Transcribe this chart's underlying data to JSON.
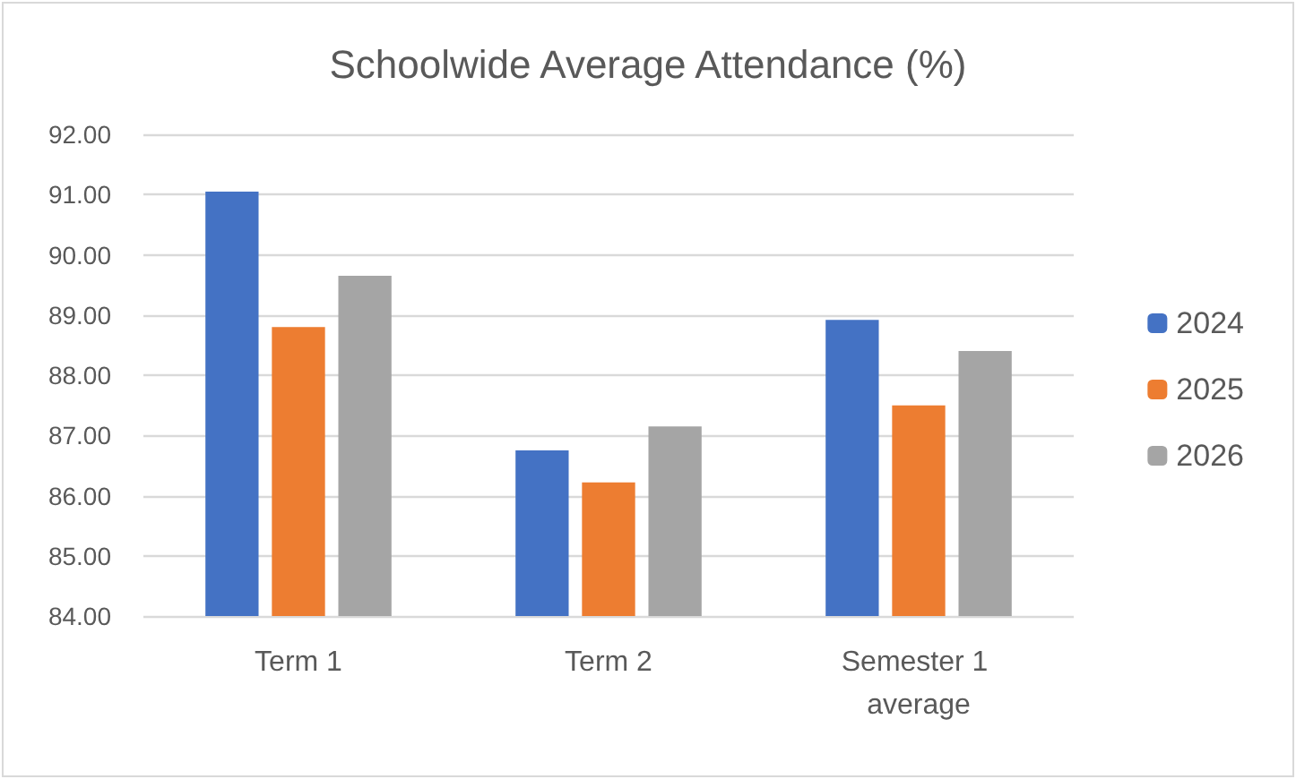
{
  "chart_data": {
    "type": "bar",
    "title": "Schoolwide Average Attendance (%)",
    "categories": [
      "Term 1",
      "Term 2",
      "Semester 1 average"
    ],
    "series": [
      {
        "name": "2024",
        "color": "#4472c4",
        "values": [
          91.05,
          86.75,
          88.92
        ]
      },
      {
        "name": "2025",
        "color": "#ed7d31",
        "values": [
          88.8,
          86.22,
          87.5
        ]
      },
      {
        "name": "2026",
        "color": "#a5a5a5",
        "values": [
          89.65,
          87.15,
          88.4
        ]
      }
    ],
    "ylim": [
      84,
      92
    ],
    "yticks": [
      {
        "value": 84,
        "label": "84.00"
      },
      {
        "value": 85,
        "label": "85.00"
      },
      {
        "value": 86,
        "label": "86.00"
      },
      {
        "value": 87,
        "label": "87.00"
      },
      {
        "value": 88,
        "label": "88.00"
      },
      {
        "value": 89,
        "label": "89.00"
      },
      {
        "value": 90,
        "label": "90.00"
      },
      {
        "value": 91,
        "label": "91.00"
      },
      {
        "value": 92,
        "label": "92.00"
      }
    ],
    "grid": "y",
    "legend": "right"
  }
}
